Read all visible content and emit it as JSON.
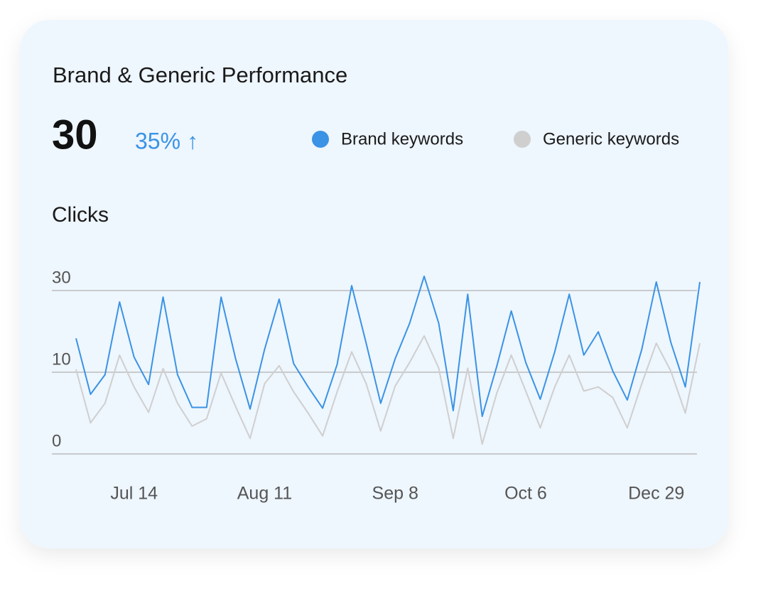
{
  "chart_data": {
    "type": "line",
    "title": "Brand & Generic Performance",
    "headline_value": 30,
    "change_label": "35% ↑",
    "y_label": "Clicks",
    "categories": [
      null,
      null,
      null,
      null,
      "Jul 14",
      null,
      null,
      null,
      null,
      null,
      null,
      null,
      null,
      "Aug 11",
      null,
      null,
      null,
      null,
      null,
      null,
      null,
      null,
      "Sep 8",
      null,
      null,
      null,
      null,
      null,
      null,
      null,
      null,
      "Oct 6",
      null,
      null,
      null,
      null,
      null,
      null,
      null,
      null,
      "Dec 29",
      null,
      null,
      null
    ],
    "series": [
      {
        "name": "Brand keywords",
        "color": "#3a93e4",
        "values": [
          18.3,
          7.3,
          9.7,
          27.2,
          13.7,
          8.5,
          28.4,
          9.7,
          5.7,
          5.7,
          28.4,
          13.3,
          5.5,
          15.6,
          27.9,
          12.1,
          8.2,
          5.6,
          11.9,
          31.2,
          17.1,
          6.2,
          13.3,
          22.0,
          33.5,
          22.0,
          5.3,
          29.1,
          4.6,
          11.4,
          25.0,
          12.4,
          6.7,
          15.0,
          29.1,
          14.2,
          19.9,
          10.3,
          6.6,
          15.6,
          32.1,
          17.3,
          8.2,
          32.1
        ]
      },
      {
        "name": "Generic keywords",
        "color": "#cfcfcf",
        "values": [
          10.7,
          3.8,
          6.2,
          14.2,
          8.2,
          5.1,
          10.9,
          6.2,
          3.4,
          4.3,
          9.9,
          5.8,
          1.9,
          8.6,
          11.6,
          7.6,
          5.0,
          2.2,
          7.6,
          15.0,
          8.6,
          2.8,
          8.3,
          12.4,
          18.9,
          11.0,
          1.9,
          11.0,
          1.2,
          7.4,
          14.2,
          7.7,
          3.2,
          8.2,
          14.2,
          7.7,
          8.2,
          6.9,
          3.2,
          8.6,
          17.1,
          10.3,
          5.0,
          17.1
        ]
      }
    ],
    "ylim": [
      0,
      30
    ],
    "yticks": [
      0,
      10,
      30
    ],
    "grid": true
  }
}
